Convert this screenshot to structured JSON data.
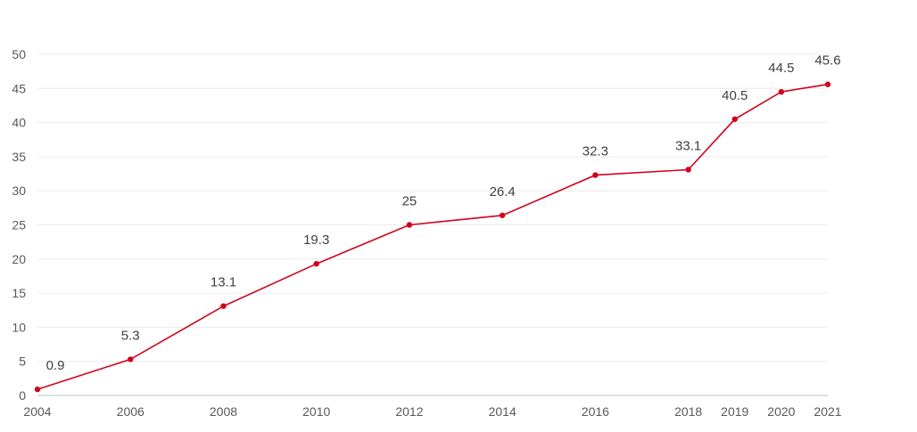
{
  "chart_data": {
    "type": "line",
    "title": "",
    "xlabel": "",
    "ylabel": "",
    "x": [
      2004,
      2006,
      2008,
      2010,
      2012,
      2014,
      2016,
      2018,
      2019,
      2020,
      2021
    ],
    "x_labels": [
      "2004",
      "2006",
      "2008",
      "2010",
      "2012",
      "2014",
      "2016",
      "2018",
      "2019",
      "2020",
      "2021"
    ],
    "series": [
      {
        "values": [
          0.9,
          5.3,
          13.1,
          19.3,
          25,
          26.4,
          32.3,
          33.1,
          40.5,
          44.5,
          45.6
        ],
        "value_labels": [
          "0.9",
          "5.3",
          "13.1",
          "19.3",
          "25",
          "26.4",
          "32.3",
          "33.1",
          "40.5",
          "44.5",
          "45.6"
        ],
        "color": "#d0021b"
      }
    ],
    "ylim": [
      0,
      50
    ],
    "y_ticks": [
      0,
      5,
      10,
      15,
      20,
      25,
      30,
      35,
      40,
      45,
      50
    ],
    "y_tick_labels": [
      "0",
      "5",
      "10",
      "15",
      "20",
      "25",
      "30",
      "35",
      "40",
      "45",
      "50"
    ],
    "grid": true,
    "legend": "none",
    "data_labels": true
  }
}
